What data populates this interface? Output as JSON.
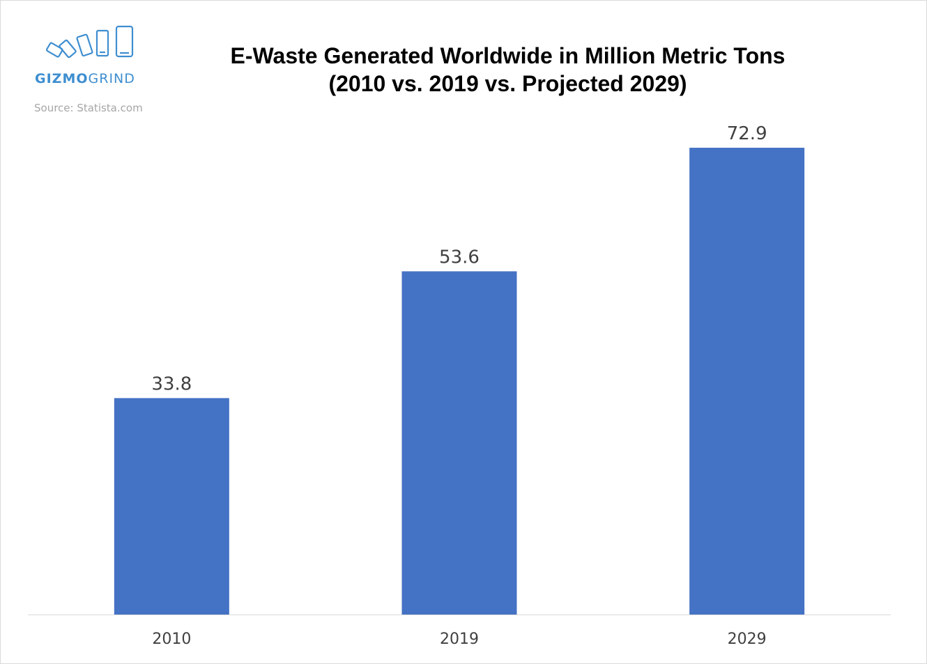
{
  "brand": {
    "logo_bold": "GIZMO",
    "logo_light": "GRIND",
    "logo_icon": "phones-icon",
    "color": "#3e8ed0"
  },
  "source": "Source: Statista.com",
  "chart_data": {
    "type": "bar",
    "title": "E-Waste Generated Worldwide in Million Metric Tons",
    "subtitle": "(2010 vs. 2019 vs. Projected 2029)",
    "categories": [
      "2010",
      "2019",
      "2029"
    ],
    "values": [
      33.8,
      53.6,
      72.9
    ],
    "data_labels": [
      "33.8",
      "53.6",
      "72.9"
    ],
    "xlabel": "",
    "ylabel": "",
    "ylim": [
      0,
      80
    ],
    "grid": false,
    "legend": "none",
    "bar_color": "#4472c4"
  }
}
